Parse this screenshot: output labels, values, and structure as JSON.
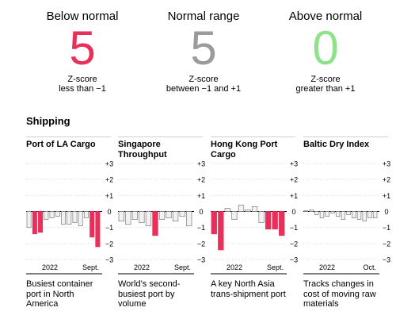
{
  "summary": [
    {
      "label": "Below normal",
      "count": "5",
      "desc_line1": "Z-score",
      "desc_line2": "less than −1",
      "color": "#e8305a"
    },
    {
      "label": "Normal range",
      "count": "5",
      "desc_line1": "Z-score",
      "desc_line2": "between −1 and +1",
      "color": "#9b9b9b"
    },
    {
      "label": "Above normal",
      "count": "0",
      "desc_line1": "Z-score",
      "desc_line2": "greater than +1",
      "color": "#8ee38a"
    }
  ],
  "section_title": "Shipping",
  "colors": {
    "below": "#e8305a",
    "normal_fill": "#f2f2f2",
    "normal_stroke": "#8a8a8a",
    "grid": "#d9d9d9",
    "axis": "#000000"
  },
  "chart_data": [
    {
      "type": "bar",
      "title_lines": [
        "Port of LA Cargo"
      ],
      "ylim": [
        -3,
        3
      ],
      "yticks": [
        "+3",
        "+2",
        "+1",
        "0",
        "−1",
        "−2",
        "−3"
      ],
      "x_labels": [
        "2022",
        "Sept."
      ],
      "values": [
        -1.0,
        -1.4,
        -1.3,
        -0.5,
        -0.4,
        -0.3,
        -0.8,
        -0.8,
        -0.7,
        -0.9,
        -0.4,
        -1.6,
        -2.2
      ],
      "description": [
        "Busiest container",
        "port in North",
        "America"
      ]
    },
    {
      "type": "bar",
      "title_lines": [
        "Singapore",
        "Throughput"
      ],
      "ylim": [
        -3,
        3
      ],
      "yticks": [
        "+3",
        "+2",
        "+1",
        "0",
        "−1",
        "−2",
        "−3"
      ],
      "x_labels": [
        "2022",
        "Sept."
      ],
      "values": [
        -0.6,
        -0.8,
        -0.5,
        -0.7,
        -0.9,
        -1.5,
        -0.5,
        -0.4,
        -0.6,
        -0.3,
        -0.9
      ],
      "description": [
        "World’s second-",
        "busiest port by",
        "volume"
      ]
    },
    {
      "type": "bar",
      "title_lines": [
        "Hong Kong Port",
        "Cargo"
      ],
      "ylim": [
        -3,
        3
      ],
      "yticks": [
        "+3",
        "+2",
        "+1",
        "0",
        "−1",
        "−2",
        "−3"
      ],
      "x_labels": [
        "2022",
        "Sept."
      ],
      "values": [
        -1.4,
        -2.4,
        0.2,
        -0.5,
        0.4,
        0.1,
        0.3,
        -0.7,
        -1.1,
        -1.1,
        -1.5
      ],
      "description": [
        "A key North Asia",
        "trans-shipment port"
      ]
    },
    {
      "type": "bar",
      "title_lines": [
        "Baltic Dry Index"
      ],
      "ylim": [
        -3,
        3
      ],
      "yticks": [
        "+3",
        "+2",
        "+1",
        "0",
        "−1",
        "−2",
        "−3"
      ],
      "x_labels": [
        "2022",
        "Oct."
      ],
      "values": [
        0.05,
        0.1,
        -0.2,
        -0.4,
        -0.3,
        -0.1,
        -0.3,
        -0.5,
        -0.2,
        -0.4,
        -0.5,
        -0.6,
        -0.4,
        -0.4
      ],
      "description": [
        "Tracks changes in",
        "cost of moving raw",
        "materials"
      ]
    }
  ]
}
